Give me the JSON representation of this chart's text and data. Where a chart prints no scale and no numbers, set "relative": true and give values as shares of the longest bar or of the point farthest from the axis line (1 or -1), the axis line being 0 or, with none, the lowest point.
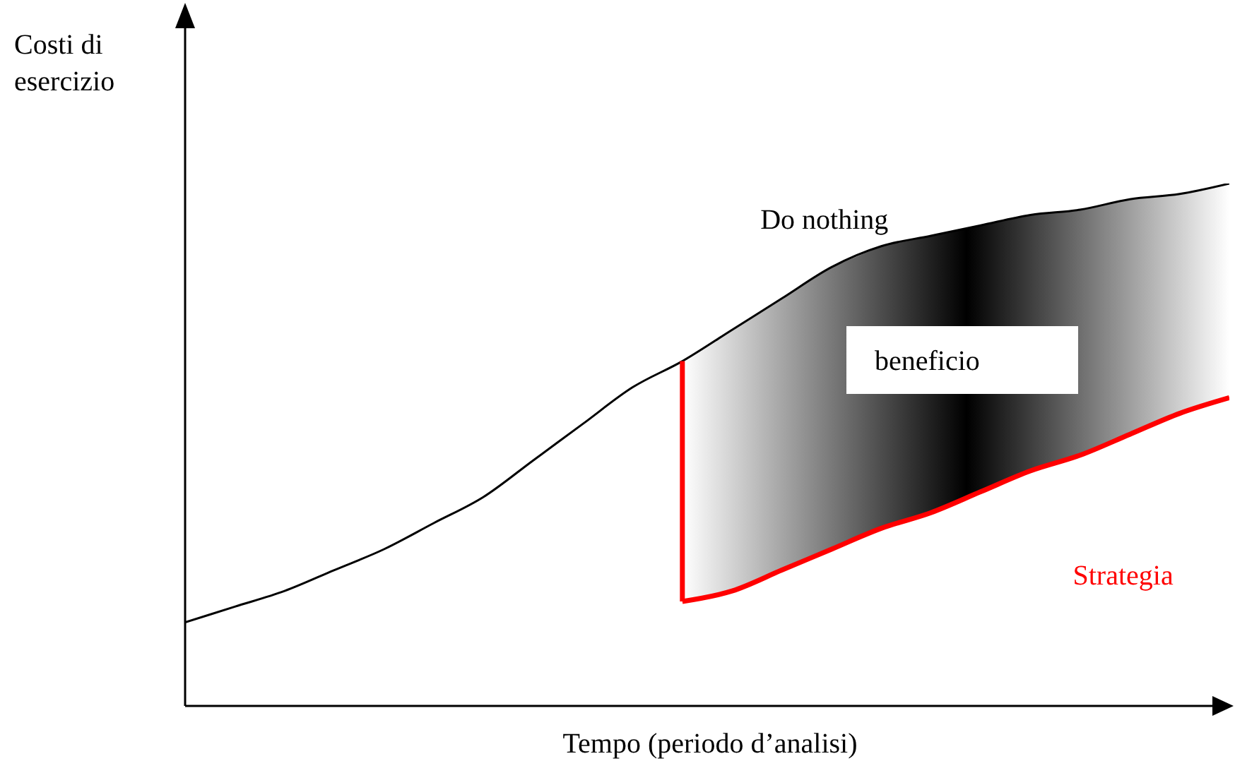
{
  "chart_data": {
    "type": "line",
    "relative": true,
    "xlabel": "Tempo (periodo d’analisi)",
    "ylabel": "Costi di\nesercizio",
    "categories": [
      null,
      null,
      null,
      null,
      null,
      null,
      null,
      null,
      null,
      null,
      null,
      null,
      null,
      null,
      null,
      null,
      null,
      null,
      null,
      null,
      null,
      null
    ],
    "marker": "none",
    "annotations": [
      "beneficio"
    ],
    "series": [
      {
        "name": "Do nothing",
        "color": "#000000",
        "values": [
          0.16,
          0.19,
          0.22,
          0.26,
          0.3,
          0.35,
          0.4,
          0.47,
          0.54,
          0.61,
          0.66,
          0.72,
          0.78,
          0.84,
          0.88,
          0.9,
          0.92,
          0.94,
          0.95,
          0.97,
          0.98,
          1.0
        ],
        "lower": [
          null,
          null,
          null,
          null,
          null,
          null,
          null,
          null,
          null,
          null,
          0.2,
          0.22,
          0.26,
          0.3,
          0.34,
          0.37,
          0.41,
          0.45,
          0.48,
          0.52,
          0.56,
          0.59
        ],
        "upper": [
          null,
          null,
          null,
          null,
          null,
          null,
          null,
          null,
          null,
          null,
          0.66,
          0.72,
          0.78,
          0.84,
          0.88,
          0.9,
          0.92,
          0.94,
          0.95,
          0.97,
          0.98,
          1.0
        ]
      },
      {
        "name": "Strategia",
        "color": "#ff0000",
        "values": [
          null,
          null,
          null,
          null,
          null,
          null,
          null,
          null,
          null,
          null,
          0.2,
          0.22,
          0.26,
          0.3,
          0.34,
          0.37,
          0.41,
          0.45,
          0.48,
          0.52,
          0.56,
          0.59
        ]
      }
    ]
  }
}
